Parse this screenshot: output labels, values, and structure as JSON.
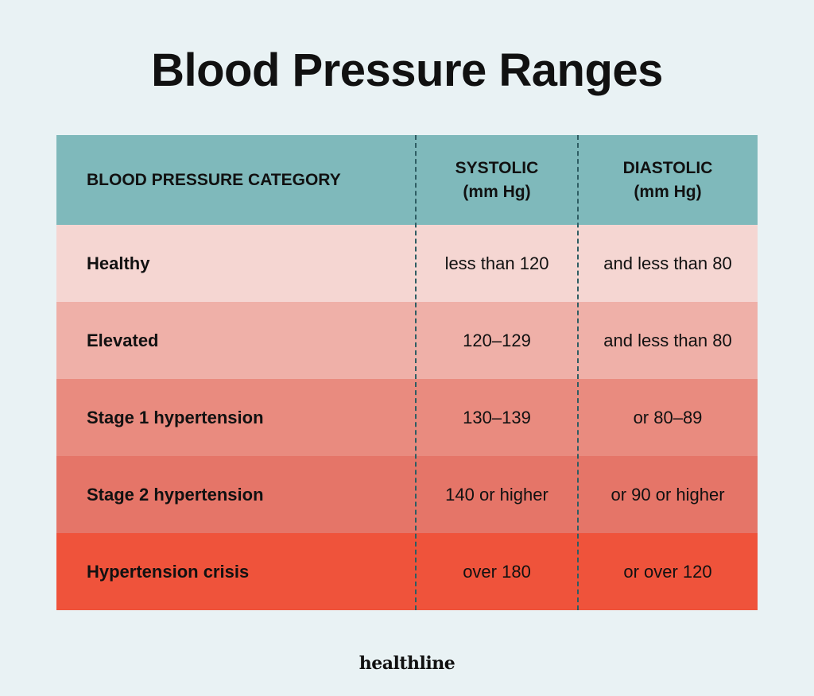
{
  "title": "Blood Pressure Ranges",
  "header": {
    "category": "BLOOD PRESSURE CATEGORY",
    "systolic": "SYSTOLIC",
    "systolic_unit": "(mm Hg)",
    "diastolic": "DIASTOLIC",
    "diastolic_unit": "(mm Hg)"
  },
  "rows": [
    {
      "category": "Healthy",
      "systolic": "less than 120",
      "diastolic": "and less than 80",
      "color": "#f5d6d2"
    },
    {
      "category": "Elevated",
      "systolic": "120–129",
      "diastolic": "and less than 80",
      "color": "#efb0a8"
    },
    {
      "category": "Stage 1 hypertension",
      "systolic": "130–139",
      "diastolic": "or 80–89",
      "color": "#e98b7f"
    },
    {
      "category": "Stage 2 hypertension",
      "systolic": "140 or higher",
      "diastolic": "or 90 or higher",
      "color": "#e57568"
    },
    {
      "category": "Hypertension crisis",
      "systolic": "over 180",
      "diastolic": "or over 120",
      "color": "#ef533b"
    }
  ],
  "colors": {
    "header": "#7fb9bb",
    "background": "#e9f2f4",
    "divider": "#2e5d63"
  },
  "brand": "healthline"
}
